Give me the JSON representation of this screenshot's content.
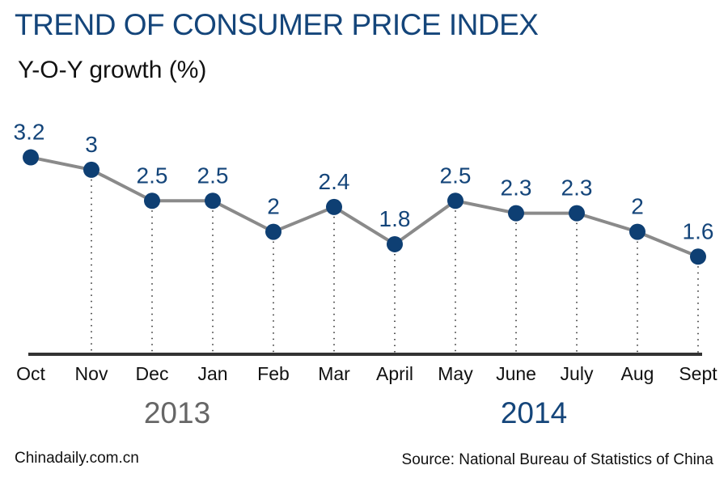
{
  "title": "TREND OF CONSUMER PRICE INDEX",
  "subtitle": "Y-O-Y growth (%)",
  "footer_left": "Chinadaily.com.cn",
  "footer_right": "Source: National Bureau of Statistics of China",
  "chart_data": {
    "type": "line",
    "title": "TREND OF CONSUMER PRICE INDEX",
    "ylabel": "Y-O-Y growth (%)",
    "categories": [
      "Oct",
      "Nov",
      "Dec",
      "Jan",
      "Feb",
      "Mar",
      "April",
      "May",
      "June",
      "July",
      "Aug",
      "Sept"
    ],
    "values": [
      3.2,
      3,
      2.5,
      2.5,
      2,
      2.4,
      1.8,
      2.5,
      2.3,
      2.3,
      2,
      1.6
    ],
    "labels": [
      "3.2",
      "3",
      "2.5",
      "2.5",
      "2",
      "2.4",
      "1.8",
      "2.5",
      "2.3",
      "2.3",
      "2",
      "1.6"
    ],
    "year_groups": [
      "2013",
      "2014"
    ],
    "ylim": [
      0,
      3.2
    ],
    "grid": false,
    "colors": {
      "line": "#8a8a8a",
      "marker": "#0e3f73",
      "label": "#14457a",
      "year_2013": "#666666",
      "year_2014": "#14457a"
    }
  }
}
